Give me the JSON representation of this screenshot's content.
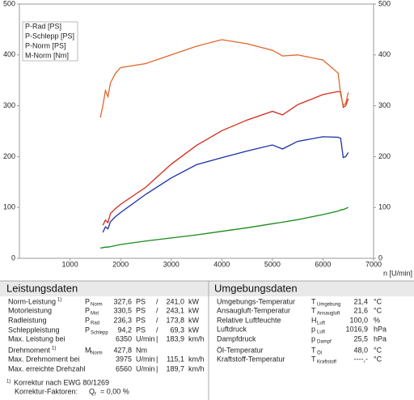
{
  "chart_data": {
    "type": "line",
    "xlabel": "n [U/min]",
    "x": [
      1600,
      1650,
      1700,
      1750,
      1800,
      1900,
      2000,
      2500,
      3000,
      3500,
      4000,
      4500,
      5000,
      5200,
      5500,
      6000,
      6300,
      6350,
      6400,
      6450,
      6500
    ],
    "xlim": [
      0,
      7000
    ],
    "xticks": [
      1000,
      2000,
      3000,
      4000,
      5000,
      6000,
      7000
    ],
    "ylim": [
      0,
      500
    ],
    "yticks": [
      0,
      100,
      200,
      300,
      400,
      500
    ],
    "y2lim": [
      0,
      500
    ],
    "y2ticks": [
      0,
      100,
      200,
      300,
      400,
      500
    ],
    "y2color": "#e0662a",
    "legend": "upper left",
    "grid": false,
    "series": [
      {
        "name": "P-Rad [PS]",
        "color": "#1c2fa6",
        "values": [
          null,
          51,
          62,
          58,
          72,
          82,
          90,
          126,
          158,
          184,
          198,
          211,
          223,
          215,
          230,
          239,
          238,
          236,
          198,
          200,
          208
        ]
      },
      {
        "name": "P-Schlepp [PS]",
        "color": "#1a8a1a",
        "values": [
          20,
          21,
          22,
          22,
          23,
          25,
          27,
          34,
          40,
          46,
          53,
          60,
          68,
          71,
          76,
          86,
          93,
          95,
          96,
          98,
          100
        ]
      },
      {
        "name": "P-Norm [PS]",
        "color": "#d42a1a",
        "values": [
          null,
          65,
          75,
          70,
          88,
          98,
          106,
          140,
          185,
          222,
          251,
          272,
          289,
          282,
          302,
          322,
          328,
          327,
          297,
          300,
          314
        ]
      },
      {
        "name": "M-Norm [Nm]",
        "color": "#e0662a",
        "axis": "y2",
        "values": [
          277,
          300,
          330,
          318,
          345,
          364,
          375,
          383,
          400,
          417,
          430,
          422,
          409,
          398,
          400,
          390,
          364,
          322,
          301,
          305,
          326
        ]
      }
    ]
  },
  "power_table": {
    "title": "Leistungsdaten",
    "rows": [
      {
        "label": "Norm-Leistung",
        "note": "1)",
        "symbol": "P",
        "sub": "Norm",
        "value": "327,6",
        "unit": "PS",
        "sep": "/",
        "value2": "241,0",
        "unit2": "kW",
        "color": "#d42a1a"
      },
      {
        "label": "Motorleistung",
        "symbol": "P",
        "sub": "Mot",
        "value": "330,5",
        "unit": "PS",
        "sep": "/",
        "value2": "243,1",
        "unit2": "kW",
        "color": "#d42a1a"
      },
      {
        "label": "Radleistung",
        "symbol": "P",
        "sub": "Rad",
        "value": "236,3",
        "unit": "PS",
        "sep": "/",
        "value2": "173,8",
        "unit2": "kW",
        "color": "#1c2fa6"
      },
      {
        "label": "Schleppleistung",
        "symbol": "P",
        "sub": "Schlepp",
        "value": "94,2",
        "unit": "PS",
        "sep": "/",
        "value2": "69,3",
        "unit2": "kW",
        "color": "#1a8a1a"
      },
      {
        "label": "Max. Leistung bei",
        "value": "6350",
        "unit": "U/min",
        "sep": "|",
        "value2": "183,9",
        "unit2": "km/h",
        "color": "#000000"
      },
      {
        "label": "Drehmoment",
        "note": "1)",
        "symbol": "M",
        "sub": "Norm",
        "value": "427,8",
        "unit": "Nm",
        "color": "#d42a1a"
      },
      {
        "label": "Max. Drehmoment bei",
        "value": "3975",
        "unit": "U/min",
        "sep": "|",
        "value2": "115,1",
        "unit2": "km/h",
        "color": "#000000"
      },
      {
        "label": "Max. erreichte Drehzahl",
        "value": "6560",
        "unit": "U/min",
        "sep": "|",
        "value2": "189,7",
        "unit2": "km/h",
        "color": "#000000"
      }
    ],
    "footnotes": [
      {
        "note": "1)",
        "text": "Korrektur nach EWG 80/1269"
      },
      {
        "text": "Korrektur-Faktoren:",
        "symbol": "Q",
        "sub": "f",
        "rest": "=  0,00 %"
      }
    ]
  },
  "environment_table": {
    "title": "Umgebungsdaten",
    "rows": [
      {
        "label": "Umgebungs-Temperatur",
        "symbol": "T",
        "sub": "Umgebung",
        "value": "21,4",
        "unit": "°C"
      },
      {
        "label": "Ansaugluft-Temperatur",
        "symbol": "T",
        "sub": "Ansaugluft",
        "value": "21,6",
        "unit": "°C"
      },
      {
        "label": "Relative Luftfeuchte",
        "symbol": "H",
        "sub": "Luft",
        "value": "100,0",
        "unit": "%"
      },
      {
        "label": "Luftdruck",
        "symbol": "p",
        "sub": "Luft",
        "value": "1016,9",
        "unit": "hPa"
      },
      {
        "label": "Dampfdruck",
        "symbol": "p",
        "sub": "Dampf",
        "value": "25,5",
        "unit": "hPa"
      },
      {
        "label": "Öl-Temperatur",
        "symbol": "T",
        "sub": "Öl",
        "value": "48,0",
        "unit": "°C"
      },
      {
        "label": "Kraftstoff-Temperatur",
        "symbol": "T",
        "sub": "Kraftstoff",
        "value": "----,-",
        "unit": "°C"
      }
    ]
  }
}
